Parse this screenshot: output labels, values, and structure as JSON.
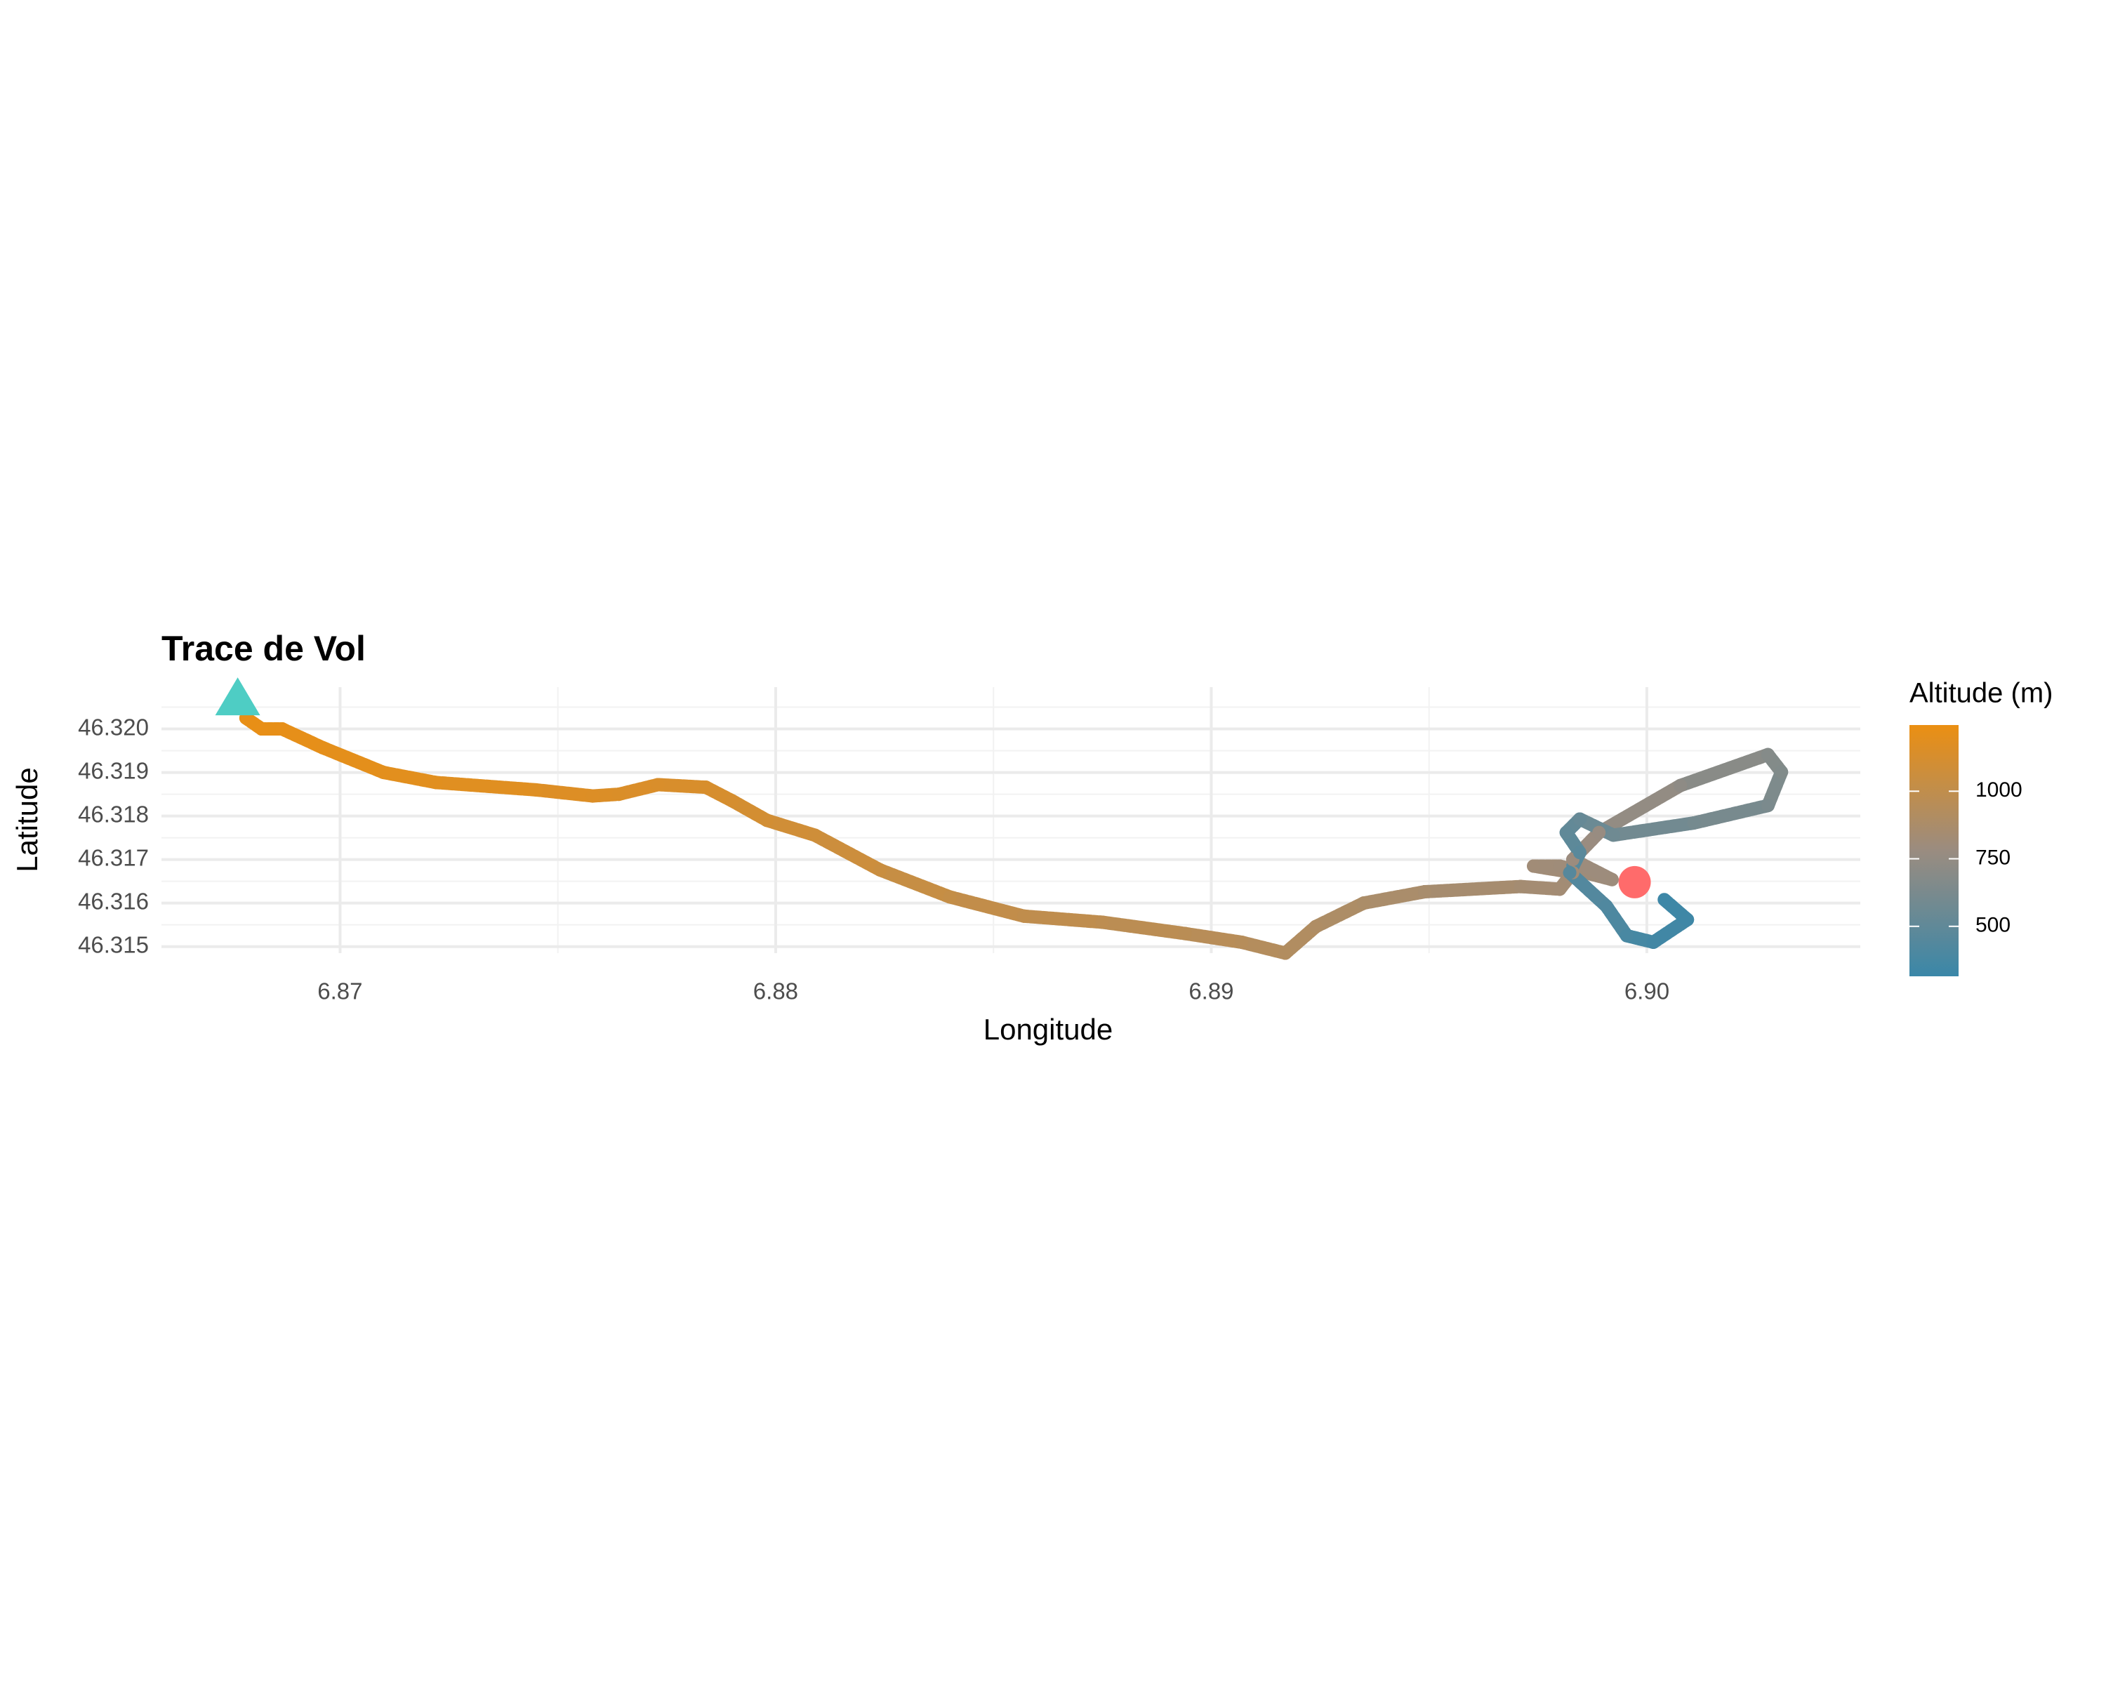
{
  "chart_data": {
    "type": "line",
    "title": "Trace de Vol",
    "x_label": "Longitude",
    "y_label": "Latitude",
    "xlim": [
      6.8659,
      6.9049
    ],
    "ylim": [
      46.31485,
      46.32096
    ],
    "xticks": [
      6.87,
      6.88,
      6.89,
      {
        "value": 6.9,
        "label": "6.90"
      }
    ],
    "yticks": [
      46.315,
      46.316,
      46.317,
      46.318,
      46.319,
      {
        "value": 46.32,
        "label": "46.320"
      }
    ],
    "x_minor_grid": [
      6.875,
      6.885,
      6.895
    ],
    "y_minor_grid": [
      46.3155,
      46.3165,
      46.3175,
      46.3185,
      46.3195,
      46.3205
    ],
    "grid": true,
    "x": [
      6.86784,
      6.8682,
      6.86867,
      6.8696,
      6.871,
      6.8722,
      6.8745,
      6.8758,
      6.8764,
      6.8773,
      6.8784,
      6.879,
      6.8798,
      6.8809,
      6.8824,
      6.884,
      6.8857,
      6.8875,
      6.8894,
      6.8907,
      6.8917,
      6.8924,
      6.8935,
      6.8949,
      6.8971,
      6.898,
      6.8983,
      6.8974,
      6.898,
      6.8992,
      6.8983,
      6.8989,
      6.90077,
      6.90278,
      6.90309,
      6.90278,
      6.90108,
      6.89923,
      6.89846,
      6.89815,
      6.89846,
      6.89823,
      6.89907,
      6.89954,
      6.90015,
      6.90093,
      6.9004
    ],
    "y": [
      46.32025,
      46.32,
      46.32,
      46.31957,
      46.319,
      46.31877,
      46.3186,
      46.31846,
      46.3185,
      46.31872,
      46.31866,
      46.31835,
      46.3179,
      46.31756,
      46.31676,
      46.31614,
      46.3157,
      46.31556,
      46.3153,
      46.3151,
      46.31485,
      46.31546,
      46.316,
      46.31626,
      46.31638,
      46.31632,
      46.3167,
      46.31685,
      46.31685,
      46.31654,
      46.317,
      46.31762,
      46.3187,
      46.31941,
      46.31901,
      46.31824,
      46.31784,
      46.31756,
      46.31793,
      46.31762,
      46.31716,
      46.3167,
      46.31593,
      46.31525,
      46.3151,
      46.31562,
      46.31608
    ],
    "altitude": [
      1230,
      1225,
      1220,
      1210,
      1200,
      1190,
      1170,
      1160,
      1150,
      1140,
      1130,
      1120,
      1100,
      1080,
      1050,
      1020,
      1000,
      980,
      960,
      940,
      920,
      900,
      880,
      860,
      840,
      830,
      820,
      820,
      810,
      800,
      790,
      770,
      720,
      680,
      660,
      630,
      600,
      570,
      530,
      500,
      470,
      450,
      420,
      390,
      360,
      340,
      330
    ],
    "color_legend": {
      "title": "Altitude (m)",
      "lim": [
        315,
        1245
      ],
      "ticks": [
        500,
        750,
        1000
      ],
      "colors": [
        "#3a87a8",
        "#9a8c80",
        "#eb8f12"
      ]
    },
    "launch": {
      "x": 6.86765,
      "y": 46.3207,
      "color": "#4ecdc4"
    },
    "landing": {
      "x": 6.89972,
      "y": 46.31648,
      "color": "#ff6b6b"
    }
  }
}
